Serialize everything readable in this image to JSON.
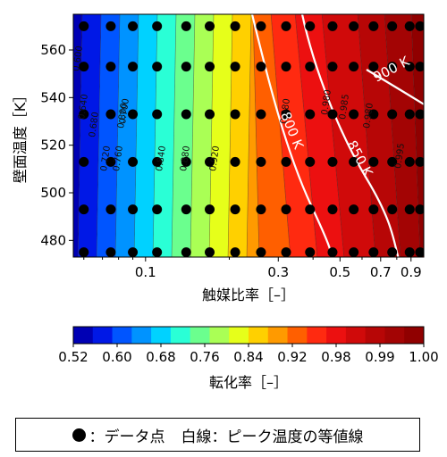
{
  "chart_data": {
    "type": "heatmap",
    "xlabel": "触媒比率［–］",
    "ylabel": "壁面温度［K］",
    "x_scale": "log",
    "xlim": [
      0.055,
      1.0
    ],
    "ylim": [
      473,
      575
    ],
    "x_ticks": [
      0.1,
      0.3,
      0.5,
      0.7,
      0.9
    ],
    "x_tick_labels": [
      "0.1",
      "0.3",
      "0.5",
      "0.7",
      "0.9"
    ],
    "y_ticks": [
      480,
      500,
      520,
      540,
      560
    ],
    "y_tick_labels": [
      "480",
      "500",
      "520",
      "540",
      "560"
    ],
    "colorbar": {
      "label": "転化率［–］",
      "tick_labels": [
        "0.52",
        "0.60",
        "0.68",
        "0.76",
        "0.84",
        "0.92",
        "0.98",
        "0.99",
        "1.00"
      ],
      "colors": [
        "#0000b4",
        "#0018e6",
        "#0055ff",
        "#0093ff",
        "#00d2ff",
        "#2affd6",
        "#6bff8e",
        "#aaff55",
        "#e6ff1a",
        "#ffd000",
        "#ff9a00",
        "#ff5f00",
        "#ff2a10",
        "#ec1010",
        "#d00a0a",
        "#b70606",
        "#a30404",
        "#900000"
      ]
    },
    "conversion_contour_labels": [
      "0.600",
      "0.640",
      "0.680",
      "0.700",
      "0.720",
      "0.760",
      "0.800",
      "0.840",
      "0.880",
      "0.920",
      "0.980",
      "0.980",
      "0.985",
      "0.980",
      "0.995"
    ],
    "temperature_contour_labels": [
      "800 K",
      "850 K",
      "900 K"
    ],
    "data_points": {
      "x": [
        0.06,
        0.075,
        0.09,
        0.11,
        0.14,
        0.17,
        0.21,
        0.26,
        0.32,
        0.39,
        0.47,
        0.56,
        0.66,
        0.77,
        0.89,
        0.97
      ],
      "y": [
        475,
        493,
        513,
        533,
        553,
        570
      ]
    }
  },
  "legend": {
    "marker_label": "：データ点",
    "line_label": "白線：ピーク温度の等値線"
  }
}
